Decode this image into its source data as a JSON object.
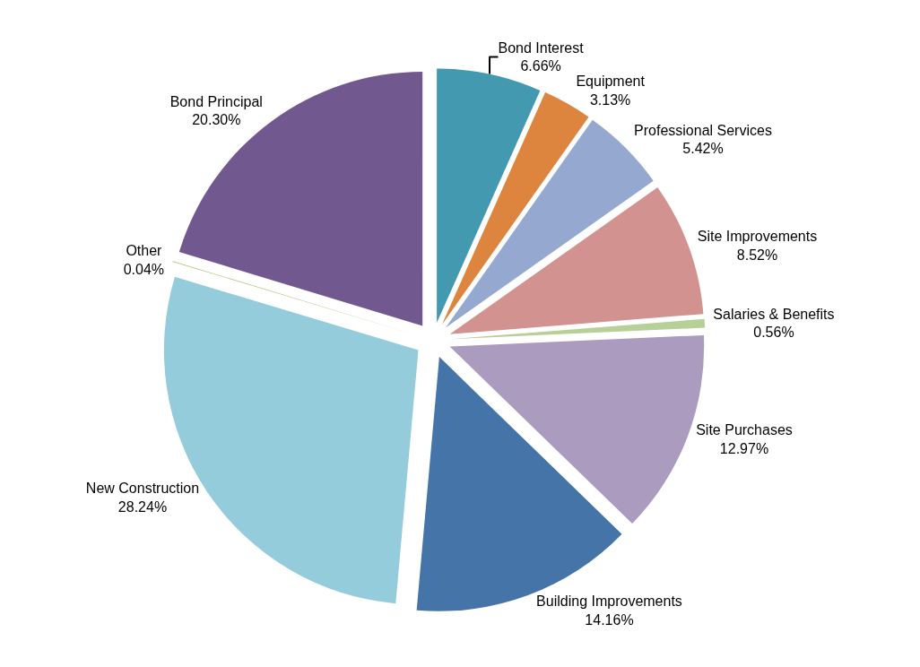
{
  "chart_data": {
    "type": "pie",
    "categories": [
      "Bond Interest",
      "Equipment",
      "Professional Services",
      "Site Improvements",
      "Salaries & Benefits",
      "Site Purchases",
      "Building Improvements",
      "New Construction",
      "Other",
      "Bond Principal"
    ],
    "values": [
      6.66,
      3.13,
      5.42,
      8.52,
      0.56,
      12.97,
      14.16,
      28.24,
      0.04,
      20.3
    ],
    "value_labels": [
      "6.66%",
      "3.13%",
      "5.42%",
      "8.52%",
      "0.56%",
      "12.97%",
      "14.16%",
      "28.24%",
      "0.04%",
      "20.30%"
    ],
    "colors": [
      "#4299b0",
      "#dd843e",
      "#95a9d0",
      "#d29290",
      "#b6d098",
      "#aa9bbf",
      "#4574a8",
      "#94ccdc",
      "#a8b86a",
      "#71588f"
    ],
    "legend": false
  }
}
